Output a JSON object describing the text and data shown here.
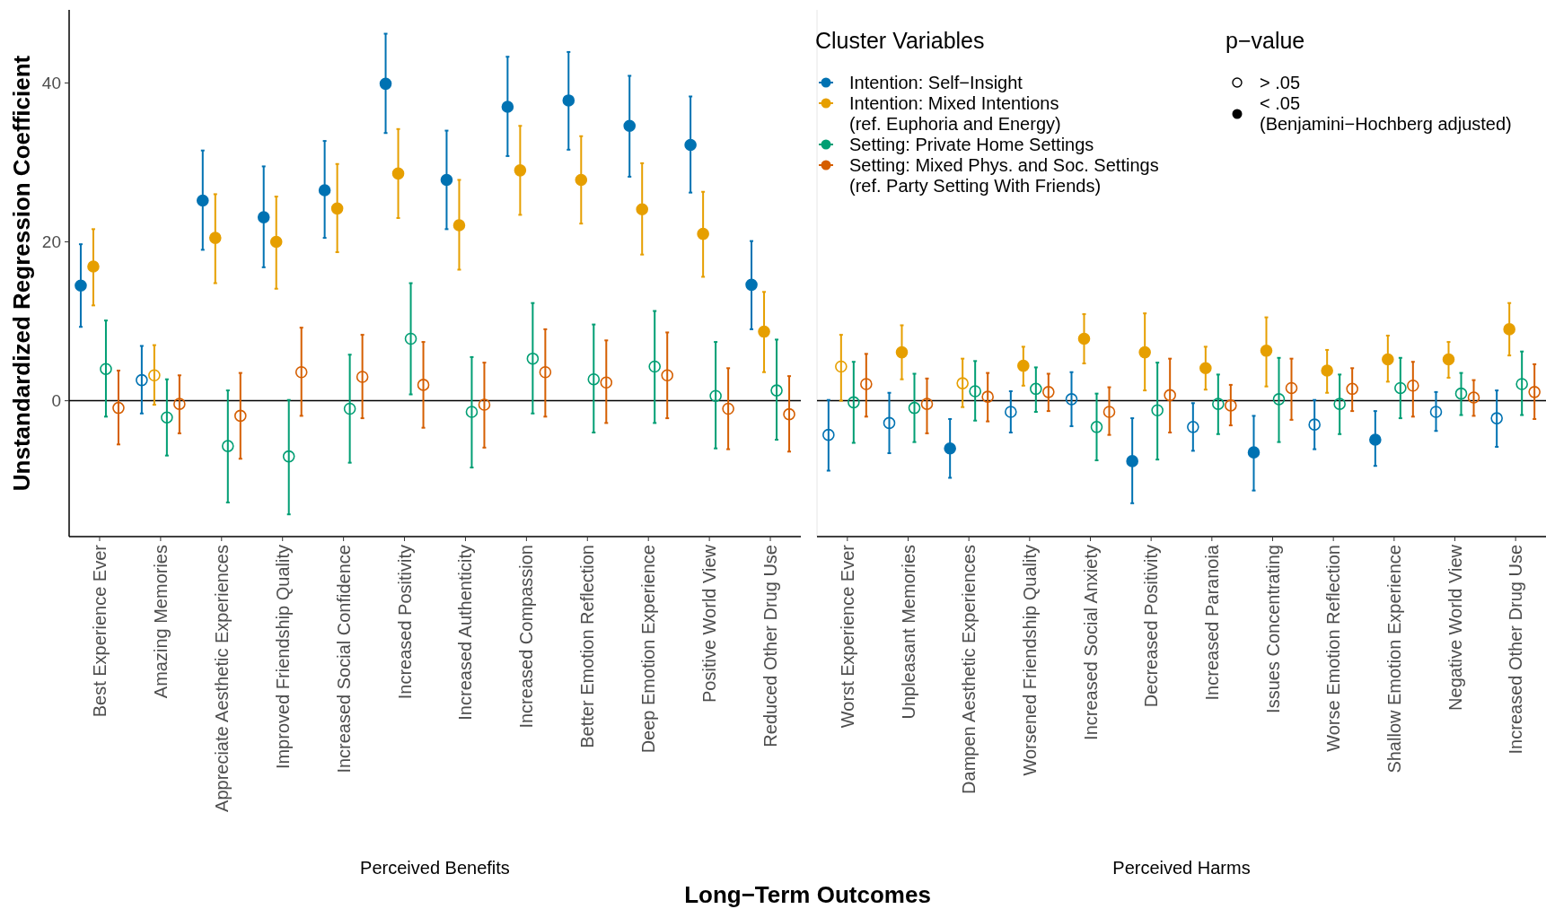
{
  "chart_data": [
    {
      "type": "scatter",
      "xlabel": "Perceived Benefits",
      "ylabel": "Unstandardized Regression Coefficient",
      "legend_title": "Cluster Variables",
      "legend": "top right",
      "marker": "circle",
      "ylim": [
        -17.1,
        49.2
      ],
      "yticks": [
        0,
        20,
        40
      ],
      "ref_lines": [
        {
          "axis": "y",
          "value": 0,
          "color": "#000000"
        }
      ],
      "annotations": [
        "p−value",
        "> .05",
        "< .05\n(Benjamini−Hochberg adjusted)",
        "Long−Term Outcomes"
      ],
      "categories": [
        "Best Experience Ever",
        "Amazing Memories",
        "Appreciate Aesthetic Experiences",
        "Improved Friendship Quality",
        "Increased Social Confidence",
        "Increased Positivity",
        "Increased Authenticity",
        "Increased Compassion",
        "Better Emotion Reflection",
        "Deep Emotion Experience",
        "Positive World View",
        "Reduced Other Drug Use"
      ],
      "series": [
        {
          "name": "Intention: Self−Insight",
          "color": "#0072b2",
          "values": [
            14.5,
            null,
            25.2,
            23.1,
            26.5,
            39.9,
            27.8,
            37,
            37.8,
            34.6,
            32.2,
            14.6
          ],
          "errors": [
            [
              9.3,
              19.7
            ],
            null,
            [
              19,
              31.5
            ],
            [
              16.8,
              29.5
            ],
            [
              20.5,
              32.7
            ],
            [
              33.7,
              46.2
            ],
            [
              21.6,
              34
            ],
            [
              30.8,
              43.3
            ],
            [
              31.6,
              43.9
            ],
            [
              28.2,
              40.9
            ],
            [
              26.2,
              38.3
            ],
            [
              9,
              20.1
            ]
          ]
        },
        {
          "color": "#0072b2",
          "marker": "circle-open",
          "values": [
            null,
            2.6,
            null,
            null,
            null,
            null,
            null,
            null,
            null,
            null,
            null,
            null
          ],
          "errors": [
            null,
            [
              -1.6,
              6.9
            ],
            null,
            null,
            null,
            null,
            null,
            null,
            null,
            null,
            null,
            null
          ]
        },
        {
          "name": "Intention: Mixed Intentions\n(ref. Euphoria and Energy)",
          "color": "#e69f00",
          "values": [
            16.9,
            null,
            20.5,
            20,
            24.2,
            28.6,
            22.1,
            29,
            27.8,
            24.1,
            21,
            8.7
          ],
          "errors": [
            [
              12,
              21.6
            ],
            null,
            [
              14.8,
              26
            ],
            [
              14.1,
              25.7
            ],
            [
              18.7,
              29.8
            ],
            [
              23,
              34.2
            ],
            [
              16.5,
              27.8
            ],
            [
              23.4,
              34.6
            ],
            [
              22.3,
              33.3
            ],
            [
              18.4,
              29.9
            ],
            [
              15.6,
              26.3
            ],
            [
              3.6,
              13.7
            ]
          ]
        },
        {
          "color": "#e69f00",
          "marker": "circle-open",
          "values": [
            null,
            3.2,
            null,
            null,
            null,
            null,
            null,
            null,
            null,
            null,
            null,
            null
          ],
          "errors": [
            null,
            [
              -0.5,
              7
            ],
            null,
            null,
            null,
            null,
            null,
            null,
            null,
            null,
            null,
            null
          ]
        },
        {
          "name": "Setting: Private Home Settings",
          "color": "#009e73",
          "values": [
            null,
            null,
            null,
            null,
            null,
            null,
            null,
            null,
            null,
            null,
            null,
            null
          ]
        },
        {
          "color": "#009e73",
          "marker": "circle-open",
          "values": [
            4,
            -2.1,
            -5.7,
            -7,
            -1,
            7.8,
            -1.4,
            5.3,
            2.7,
            4.3,
            0.6,
            1.3
          ],
          "errors": [
            [
              -2,
              10.1
            ],
            [
              -6.9,
              2.7
            ],
            [
              -12.8,
              1.3
            ],
            [
              -14.3,
              0.1
            ],
            [
              -7.8,
              5.8
            ],
            [
              0.8,
              14.8
            ],
            [
              -8.4,
              5.5
            ],
            [
              -1.6,
              12.3
            ],
            [
              -4,
              9.6
            ],
            [
              -2.8,
              11.3
            ],
            [
              -6,
              7.4
            ],
            [
              -4.9,
              7.7
            ]
          ]
        },
        {
          "name": "Setting: Mixed Phys. and Soc. Settings\n(ref. Party Setting With Friends)",
          "color": "#d55e00",
          "values": [
            null,
            null,
            null,
            null,
            null,
            null,
            null,
            null,
            null,
            null,
            null,
            null
          ]
        },
        {
          "color": "#d55e00",
          "marker": "circle-open",
          "values": [
            -0.9,
            -0.4,
            -1.9,
            3.6,
            3,
            2,
            -0.5,
            3.6,
            2.3,
            3.2,
            -1,
            -1.7
          ],
          "errors": [
            [
              -5.5,
              3.8
            ],
            [
              -4.1,
              3.2
            ],
            [
              -7.3,
              3.5
            ],
            [
              -1.9,
              9.2
            ],
            [
              -2.2,
              8.3
            ],
            [
              -3.4,
              7.4
            ],
            [
              -5.9,
              4.8
            ],
            [
              -2,
              9
            ],
            [
              -2.8,
              7.6
            ],
            [
              -2.2,
              8.6
            ],
            [
              -6.1,
              4.1
            ],
            [
              -6.4,
              3.1
            ]
          ]
        }
      ]
    },
    {
      "type": "scatter",
      "xlabel": "Perceived Harms",
      "marker": "circle",
      "tick_labels": "x",
      "ylim": [
        -17.1,
        49.2
      ],
      "yticks": [
        0,
        20,
        40
      ],
      "ref_lines": [
        {
          "axis": "y",
          "value": 0,
          "color": "#000000"
        }
      ],
      "categories": [
        "Worst Experience Ever",
        "Unpleasant Memories",
        "Dampen Aesthetic Experiences",
        "Worsened Friendship Quality",
        "Increased Social Anxiety",
        "Decreased Positivity",
        "Increased Paranoia",
        "Issues Concentrating",
        "Worse Emotion Reflection",
        "Shallow Emotion Experience",
        "Negative World View",
        "Increased Other Drug Use"
      ],
      "series": [
        {
          "color": "#0072b2",
          "values": [
            null,
            null,
            -6,
            null,
            null,
            -7.6,
            null,
            -6.5,
            null,
            -4.9,
            null,
            null
          ],
          "errors": [
            null,
            null,
            [
              -9.7,
              -2.3
            ],
            null,
            null,
            [
              -12.9,
              -2.2
            ],
            null,
            [
              -11.3,
              -1.9
            ],
            null,
            [
              -8.2,
              -1.3
            ],
            null,
            null
          ]
        },
        {
          "color": "#0072b2",
          "marker": "circle-open",
          "values": [
            -4.3,
            -2.8,
            null,
            -1.4,
            0.2,
            null,
            -3.3,
            null,
            -3,
            null,
            -1.4,
            -2.2
          ],
          "errors": [
            [
              -8.8,
              0.1
            ],
            [
              -6.6,
              1
            ],
            null,
            [
              -4,
              1.2
            ],
            [
              -3.2,
              3.6
            ],
            null,
            [
              -6.3,
              -0.3
            ],
            null,
            [
              -6.1,
              0.1
            ],
            null,
            [
              -3.8,
              1.1
            ],
            [
              -5.8,
              1.3
            ]
          ]
        },
        {
          "color": "#e69f00",
          "values": [
            null,
            6.1,
            null,
            4.4,
            7.8,
            6.1,
            4.1,
            6.3,
            3.8,
            5.2,
            5.2,
            9
          ],
          "errors": [
            null,
            [
              2.7,
              9.5
            ],
            null,
            [
              1.9,
              6.8
            ],
            [
              4.7,
              10.9
            ],
            [
              1.3,
              11
            ],
            [
              1.4,
              6.8
            ],
            [
              1.8,
              10.5
            ],
            [
              1,
              6.4
            ],
            [
              2.4,
              8.2
            ],
            [
              2.9,
              7.4
            ],
            [
              5.7,
              12.3
            ]
          ]
        },
        {
          "color": "#e69f00",
          "marker": "circle-open",
          "values": [
            4.3,
            null,
            2.2,
            null,
            null,
            null,
            null,
            null,
            null,
            null,
            null,
            null
          ],
          "errors": [
            [
              0,
              8.3
            ],
            null,
            [
              -0.8,
              5.3
            ],
            null,
            null,
            null,
            null,
            null,
            null,
            null,
            null,
            null
          ]
        },
        {
          "color": "#009e73",
          "marker": "circle-open",
          "values": [
            -0.2,
            -0.9,
            1.2,
            1.5,
            -3.3,
            -1.2,
            -0.4,
            0.2,
            -0.4,
            1.6,
            0.9,
            2.1
          ],
          "errors": [
            [
              -5.3,
              4.9
            ],
            [
              -5.2,
              3.4
            ],
            [
              -2.5,
              5
            ],
            [
              -1.4,
              4.2
            ],
            [
              -7.5,
              0.9
            ],
            [
              -7.4,
              4.8
            ],
            [
              -4.2,
              3.3
            ],
            [
              -5.2,
              5.4
            ],
            [
              -4.2,
              3.3
            ],
            [
              -2.2,
              5.4
            ],
            [
              -1.8,
              3.5
            ],
            [
              -1.8,
              6.2
            ]
          ]
        },
        {
          "color": "#d55e00",
          "marker": "circle-open",
          "values": [
            2.1,
            -0.4,
            0.5,
            1.1,
            -1.4,
            0.7,
            -0.6,
            1.6,
            1.5,
            1.9,
            0.4,
            1.1
          ],
          "errors": [
            [
              -2,
              5.9
            ],
            [
              -4.1,
              2.8
            ],
            [
              -2.6,
              3.5
            ],
            [
              -1.3,
              3.4
            ],
            [
              -4.3,
              1.7
            ],
            [
              -4,
              5.3
            ],
            [
              -3.1,
              2
            ],
            [
              -2.4,
              5.3
            ],
            [
              -1.3,
              4.1
            ],
            [
              -2,
              4.9
            ],
            [
              -1.9,
              2.6
            ],
            [
              -2.3,
              4.6
            ]
          ]
        }
      ]
    }
  ]
}
